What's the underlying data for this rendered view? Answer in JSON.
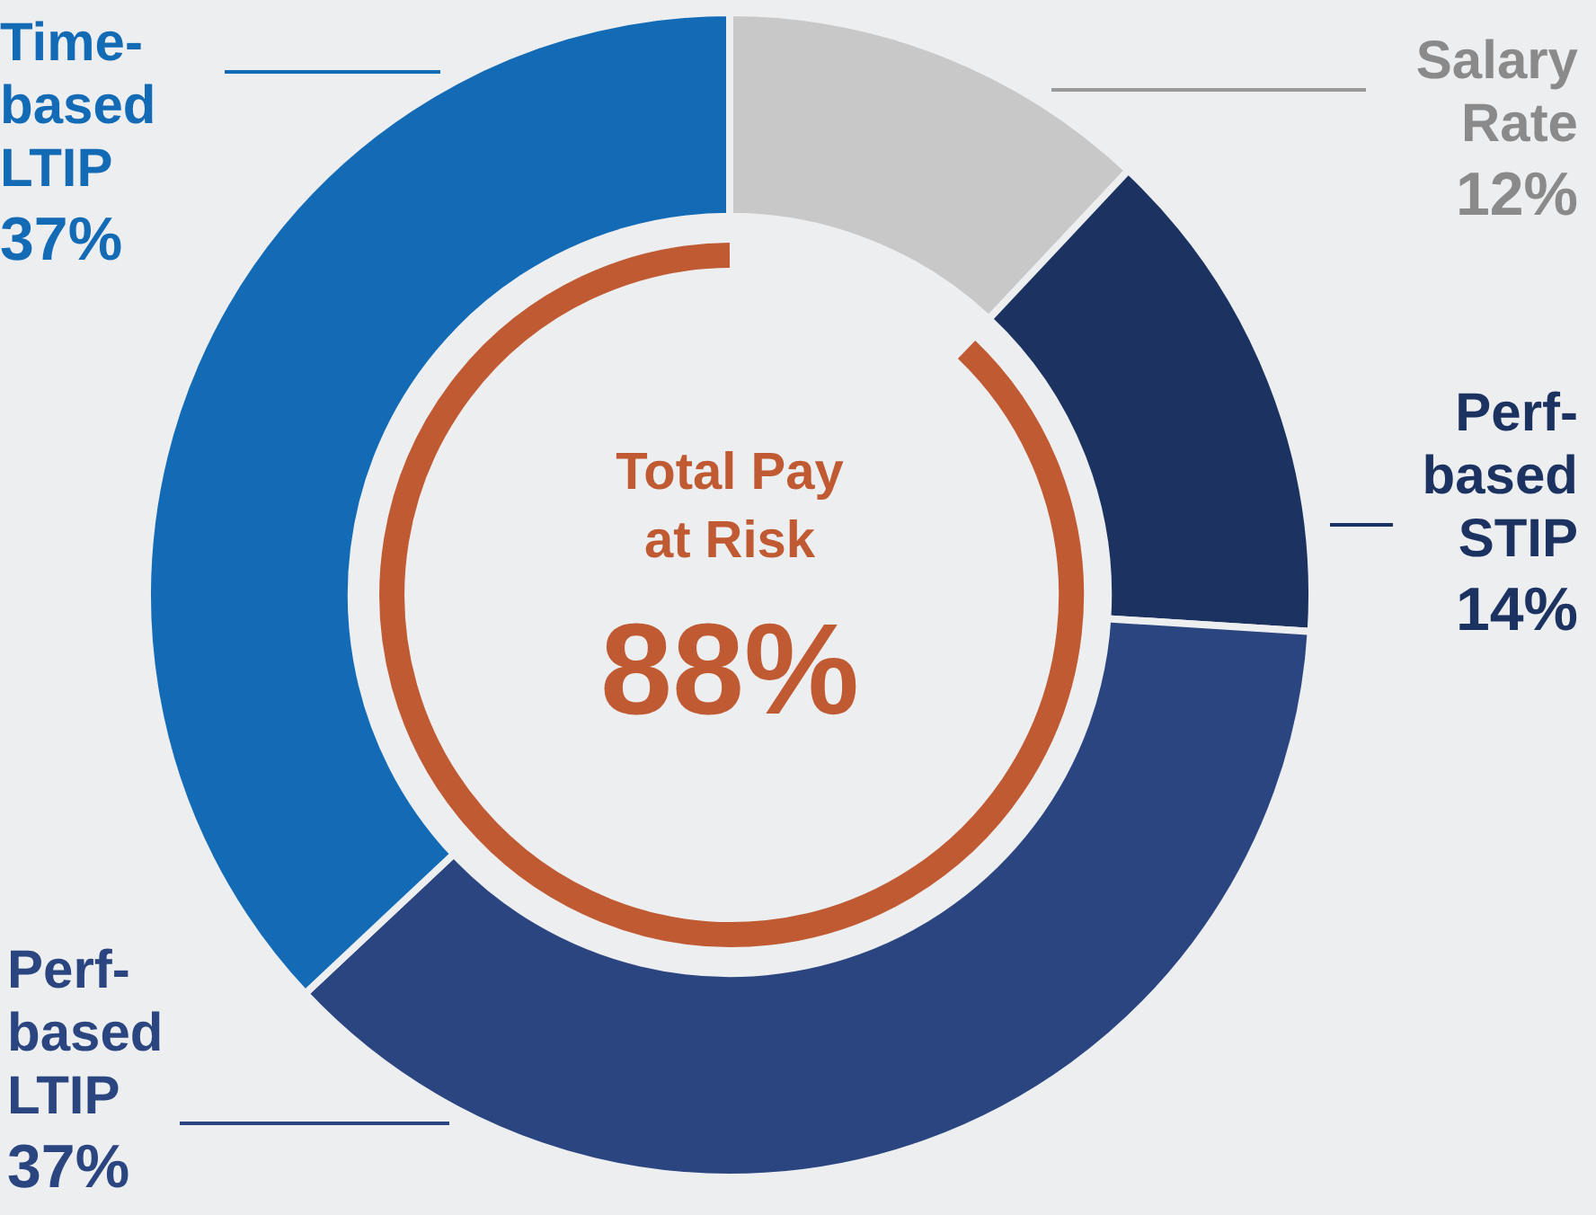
{
  "chart_data": {
    "type": "donut",
    "categories": [
      "Salary Rate",
      "Perf-based STIP",
      "Perf-based LTIP",
      "Time-based LTIP"
    ],
    "values": [
      12,
      14,
      37,
      37
    ],
    "colors": [
      "#c8c8c8",
      "#1c3260",
      "#2b4580",
      "#146bb5"
    ],
    "value_labels": [
      "12%",
      "14%",
      "37%",
      "37%"
    ],
    "annotations": [
      "Total Pay at Risk",
      "88%"
    ]
  }
}
